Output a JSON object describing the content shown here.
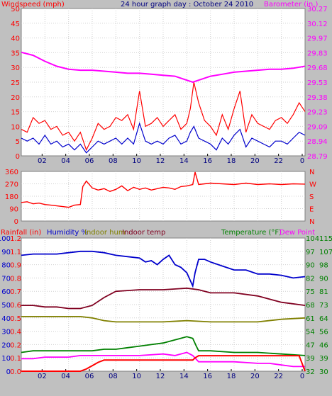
{
  "title": "24 hour graph day : October 24 2010",
  "colors": {
    "background": "#c0c0c0",
    "plot_bg": "#ffffff",
    "windspeed": "#ff0000",
    "gust": "#ff0000",
    "wind_avg": "#0000cc",
    "barometer": "#ff00ff",
    "direction": "#ff0000",
    "rainfall": "#ff0000",
    "humidity": "#0000cc",
    "indoor_hum": "#808000",
    "indoor_temp": "#800020",
    "temperature": "#008000",
    "dew_point": "#ff00ff"
  },
  "chart_data": [
    {
      "type": "line",
      "panel": "wind",
      "left_label": "Windspeed (mph)",
      "right_label": "Barometer (in.)",
      "x_ticks": [
        "02",
        "04",
        "06",
        "08",
        "10",
        "12",
        "14",
        "16",
        "18",
        "20",
        "22",
        "0"
      ],
      "left_ticks": [
        "0",
        "5",
        "10",
        "15",
        "20",
        "25",
        "30",
        "35",
        "40",
        "45",
        "50"
      ],
      "right_ticks": [
        "28.79",
        "28.94",
        "29.09",
        "29.23",
        "29.38",
        "29.53",
        "29.68",
        "29.83",
        "29.97",
        "30.12",
        "30.27"
      ],
      "ylim_left": [
        0,
        50
      ],
      "ylim_right": [
        28.79,
        30.27
      ],
      "grid": true,
      "series": [
        {
          "name": "gust",
          "axis": "left",
          "color": "#ff0000",
          "x": [
            0,
            0.5,
            1,
            1.5,
            2,
            2.5,
            3,
            3.5,
            4,
            4.5,
            5,
            5.5,
            6,
            6.5,
            7,
            7.5,
            8,
            8.5,
            9,
            9.5,
            10,
            10.5,
            11,
            11.5,
            12,
            12.5,
            13,
            13.5,
            14,
            14.3,
            14.6,
            15,
            15.5,
            16,
            16.5,
            17,
            17.5,
            18,
            18.5,
            19,
            19.5,
            20,
            20.5,
            21,
            21.5,
            22,
            22.5,
            23,
            23.5,
            24
          ],
          "y": [
            9,
            8,
            13,
            11,
            12,
            9,
            10,
            7,
            8,
            5,
            8,
            2,
            6,
            11,
            9,
            10,
            13,
            12,
            14,
            9,
            22,
            10,
            11,
            13,
            10,
            12,
            14,
            9,
            11,
            16,
            25,
            18,
            12,
            10,
            7,
            14,
            9,
            16,
            22,
            8,
            14,
            11,
            10,
            9,
            12,
            13,
            11,
            14,
            18,
            15
          ]
        },
        {
          "name": "avg",
          "axis": "left",
          "color": "#0000cc",
          "x": [
            0,
            0.5,
            1,
            1.5,
            2,
            2.5,
            3,
            3.5,
            4,
            4.5,
            5,
            5.5,
            6,
            6.5,
            7,
            7.5,
            8,
            8.5,
            9,
            9.5,
            10,
            10.5,
            11,
            11.5,
            12,
            12.5,
            13,
            13.5,
            14,
            14.3,
            14.6,
            15,
            15.5,
            16,
            16.5,
            17,
            17.5,
            18,
            18.5,
            19,
            19.5,
            20,
            20.5,
            21,
            21.5,
            22,
            22.5,
            23,
            23.5,
            24
          ],
          "y": [
            6,
            5,
            6,
            4,
            7,
            4,
            5,
            3,
            4,
            2,
            4,
            1,
            3,
            5,
            4,
            5,
            6,
            4,
            6,
            4,
            11,
            5,
            4,
            5,
            4,
            6,
            7,
            4,
            5,
            8,
            10,
            6,
            5,
            4,
            2,
            6,
            4,
            7,
            9,
            3,
            6,
            5,
            4,
            3,
            5,
            5,
            4,
            6,
            8,
            7
          ]
        },
        {
          "name": "barometer",
          "axis": "right",
          "color": "#ff00ff",
          "x": [
            0,
            1,
            2,
            3,
            4,
            5,
            6,
            7,
            8,
            9,
            10,
            11,
            12,
            13,
            14,
            14.5,
            15,
            16,
            17,
            18,
            19,
            20,
            21,
            22,
            23,
            24
          ],
          "y": [
            29.83,
            29.8,
            29.74,
            29.69,
            29.66,
            29.65,
            29.65,
            29.64,
            29.63,
            29.62,
            29.62,
            29.61,
            29.6,
            29.59,
            29.55,
            29.53,
            29.55,
            29.59,
            29.61,
            29.63,
            29.64,
            29.65,
            29.66,
            29.66,
            29.67,
            29.69
          ]
        }
      ]
    },
    {
      "type": "line",
      "panel": "direction",
      "left_ticks": [
        "0",
        "90",
        "180",
        "270",
        "360"
      ],
      "right_ticks": [
        "N",
        "W",
        "S",
        "E",
        "N"
      ],
      "ylim": [
        0,
        360
      ],
      "grid": true,
      "series": [
        {
          "name": "direction",
          "color": "#ff0000",
          "x": [
            0,
            0.5,
            1,
            1.5,
            2,
            2.5,
            3,
            3.5,
            4,
            4.5,
            5,
            5.2,
            5.5,
            6,
            6.5,
            7,
            7.5,
            8,
            8.5,
            9,
            9.5,
            10,
            10.5,
            11,
            11.5,
            12,
            12.5,
            13,
            13.5,
            14,
            14.5,
            14.7,
            15,
            15.5,
            16,
            17,
            18,
            19,
            20,
            21,
            22,
            23,
            24
          ],
          "y": [
            135,
            140,
            125,
            130,
            120,
            115,
            110,
            105,
            100,
            115,
            120,
            250,
            290,
            240,
            225,
            235,
            215,
            230,
            255,
            220,
            245,
            230,
            240,
            225,
            235,
            245,
            240,
            230,
            250,
            255,
            265,
            355,
            265,
            270,
            275,
            270,
            265,
            275,
            265,
            270,
            265,
            270,
            268
          ]
        }
      ]
    },
    {
      "type": "line",
      "panel": "temperature",
      "header_labels": [
        "Rainfall (in)",
        "Humidity %",
        "Indoor hum",
        "Indoor temp",
        "Temperature (°F)",
        "Dew Point"
      ],
      "x_ticks": [
        "02",
        "04",
        "06",
        "08",
        "10",
        "12",
        "14",
        "16",
        "18",
        "20",
        "22",
        "0"
      ],
      "left_ticks": [
        "0",
        "10",
        "20",
        "30",
        "40",
        "50",
        "60",
        "70",
        "80",
        "90",
        "100"
      ],
      "left2_ticks": [
        "0.0",
        "0.1",
        "0.2",
        "0.4",
        "0.5",
        "0.6",
        "0.7",
        "0.8",
        "0.9",
        "1.1",
        "1.2"
      ],
      "right_ticks": [
        "32",
        "39",
        "47",
        "54",
        "61",
        "68",
        "75",
        "82",
        "90",
        "97",
        "104"
      ],
      "right2_ticks": [
        "30",
        "39",
        "46",
        "56",
        "64",
        "73",
        "81",
        "90",
        "98",
        "107",
        "115"
      ],
      "ylim_left": [
        0,
        100
      ],
      "ylim_temp": [
        30,
        115
      ],
      "grid": true,
      "series": [
        {
          "name": "Humidity %",
          "axis": "left",
          "color": "#0000cc",
          "x": [
            0,
            1,
            2,
            3,
            4,
            5,
            6,
            7,
            8,
            9,
            10,
            10.5,
            11,
            11.5,
            12,
            12.5,
            13,
            13.5,
            14,
            14.5,
            14.7,
            15,
            15.5,
            16,
            17,
            18,
            19,
            20,
            21,
            22,
            23,
            24
          ],
          "y": [
            87,
            88,
            88,
            88,
            89,
            90,
            90,
            89,
            87,
            86,
            85,
            82,
            83,
            80,
            84,
            87,
            80,
            78,
            74,
            64,
            74,
            84,
            84,
            82,
            79,
            76,
            76,
            73,
            73,
            72,
            70,
            71
          ]
        },
        {
          "name": "Indoor hum",
          "axis": "left",
          "color": "#808000",
          "x": [
            0,
            2,
            4,
            5,
            6,
            7,
            8,
            9,
            10,
            12,
            14,
            16,
            18,
            20,
            22,
            24
          ],
          "y": [
            41,
            41,
            41,
            41,
            40,
            38,
            37,
            37,
            37,
            37,
            38,
            37,
            37,
            37,
            39,
            40
          ]
        },
        {
          "name": "Indoor temp",
          "axis": "temp",
          "color": "#800020",
          "x": [
            0,
            1,
            2,
            3,
            4,
            5,
            6,
            7,
            8,
            10,
            12,
            14,
            15,
            16,
            18,
            20,
            22,
            24
          ],
          "y": [
            72,
            72,
            71,
            71,
            70,
            70,
            72,
            77,
            81,
            82,
            82,
            83,
            82,
            80,
            80,
            78,
            74,
            72
          ]
        },
        {
          "name": "Temperature (°F)",
          "axis": "temp",
          "color": "#008000",
          "x": [
            0,
            1,
            2,
            3,
            4,
            5,
            6,
            7,
            8,
            9,
            10,
            11,
            12,
            13,
            14,
            14.5,
            14.8,
            15,
            16,
            18,
            20,
            22,
            24
          ],
          "y": [
            42,
            43,
            43,
            43,
            43,
            43,
            43,
            44,
            44,
            45,
            46,
            47,
            48,
            50,
            52,
            51,
            46,
            43,
            43,
            42,
            42,
            41,
            40
          ]
        },
        {
          "name": "Dew Point",
          "axis": "temp",
          "color": "#ff00ff",
          "x": [
            0,
            1,
            2,
            3,
            4,
            5,
            6,
            7,
            8,
            10,
            12,
            13,
            14,
            14.5,
            15,
            16,
            17,
            18,
            20,
            21,
            22,
            23,
            24
          ],
          "y": [
            38,
            38,
            39,
            39,
            39,
            40,
            40,
            40,
            40,
            40,
            41,
            40,
            42,
            40,
            36,
            36,
            36,
            36,
            35,
            35,
            34,
            33,
            33
          ]
        },
        {
          "name": "Rainfall (in)",
          "axis": "rain",
          "color": "#ff0000",
          "x": [
            0,
            2,
            4,
            5,
            5.5,
            6,
            6.5,
            7,
            8,
            9,
            10,
            11,
            12,
            13,
            14,
            14.5,
            14.7,
            15,
            16,
            18,
            20,
            22,
            23.5,
            24
          ],
          "y": [
            0,
            0,
            0,
            0,
            0.02,
            0.05,
            0.08,
            0.1,
            0.1,
            0.1,
            0.1,
            0.1,
            0.1,
            0.1,
            0.1,
            0.1,
            0.12,
            0.14,
            0.14,
            0.14,
            0.14,
            0.14,
            0.14,
            0.0
          ]
        }
      ]
    }
  ]
}
